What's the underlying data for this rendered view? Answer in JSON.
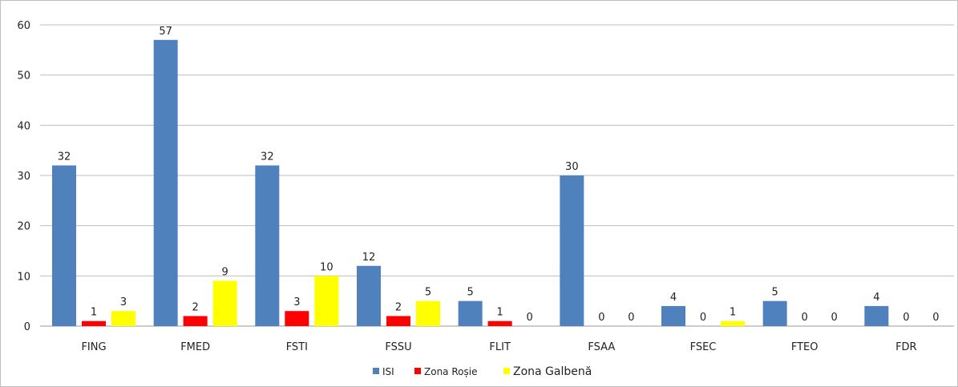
{
  "chart_data": {
    "type": "bar",
    "categories": [
      "FING",
      "FMED",
      "FSTI",
      "FSSU",
      "FLIT",
      "FSAA",
      "FSEC",
      "FTEO",
      "FDR"
    ],
    "series": [
      {
        "name": "ISI",
        "color": "#4f81bd",
        "values": [
          32,
          57,
          32,
          12,
          5,
          30,
          4,
          5,
          4
        ]
      },
      {
        "name": "Zona Roșie",
        "color": "#ff0000",
        "values": [
          1,
          2,
          3,
          2,
          1,
          0,
          0,
          0,
          0
        ]
      },
      {
        "name": "Zona Galbenă",
        "color": "#ffff00",
        "values": [
          3,
          9,
          10,
          5,
          0,
          0,
          1,
          0,
          0
        ]
      }
    ],
    "title": "",
    "xlabel": "",
    "ylabel": "",
    "ylim": [
      0,
      60
    ],
    "yticks": [
      0,
      10,
      20,
      30,
      40,
      50,
      60
    ],
    "grid": true,
    "legend": "bottom"
  }
}
